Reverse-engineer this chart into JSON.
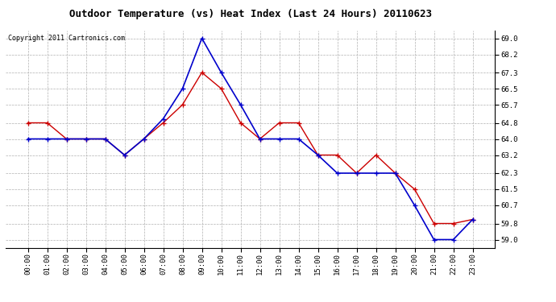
{
  "title": "Outdoor Temperature (vs) Heat Index (Last 24 Hours) 20110623",
  "subtitle": "Copyright 2011 Cartronics.com",
  "hours": [
    "00:00",
    "01:00",
    "02:00",
    "03:00",
    "04:00",
    "05:00",
    "06:00",
    "07:00",
    "08:00",
    "09:00",
    "10:00",
    "11:00",
    "12:00",
    "13:00",
    "14:00",
    "15:00",
    "16:00",
    "17:00",
    "18:00",
    "19:00",
    "20:00",
    "21:00",
    "22:00",
    "23:00"
  ],
  "temp_red": [
    64.8,
    64.8,
    64.0,
    64.0,
    64.0,
    63.2,
    64.0,
    64.8,
    65.7,
    67.3,
    66.5,
    64.8,
    64.0,
    64.8,
    64.8,
    63.2,
    63.2,
    62.3,
    63.2,
    62.3,
    61.5,
    59.8,
    59.8,
    60.0
  ],
  "heat_blue": [
    64.0,
    64.0,
    64.0,
    64.0,
    64.0,
    63.2,
    64.0,
    65.0,
    66.5,
    69.0,
    67.3,
    65.7,
    64.0,
    64.0,
    64.0,
    63.2,
    62.3,
    62.3,
    62.3,
    62.3,
    60.7,
    59.0,
    59.0,
    60.0
  ],
  "ylim_min": 58.6,
  "ylim_max": 69.4,
  "yticks": [
    59.0,
    59.8,
    60.7,
    61.5,
    62.3,
    63.2,
    64.0,
    64.8,
    65.7,
    66.5,
    67.3,
    68.2,
    69.0
  ],
  "bg_color": "#ffffff",
  "plot_bg_color": "#ffffff",
  "grid_color": "#b0b0b0",
  "red_color": "#cc0000",
  "blue_color": "#0000cc",
  "title_fontsize": 9,
  "subtitle_fontsize": 6,
  "tick_fontsize": 6.5
}
